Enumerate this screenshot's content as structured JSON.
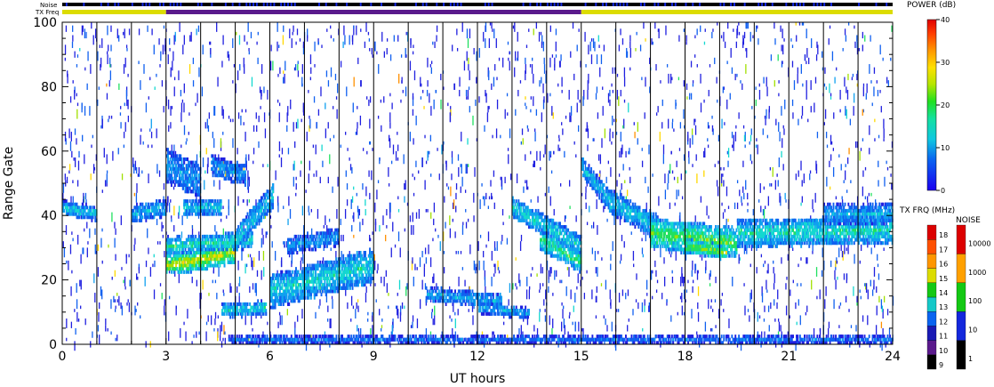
{
  "chart_data": {
    "type": "heatmap",
    "xlabel": "UT hours",
    "ylabel": "Range Gate",
    "xlim": [
      0,
      24
    ],
    "ylim": [
      0,
      100
    ],
    "x_ticks": [
      "0",
      "3",
      "6",
      "9",
      "12",
      "15",
      "18",
      "21",
      "24"
    ],
    "y_ticks": [
      "0",
      "20",
      "40",
      "60",
      "80",
      "100"
    ],
    "grid": "vertical lines each UT hour",
    "top_bars": {
      "noise_label": "Noise",
      "freq_label": "TX Freq",
      "tx_freq_segments": [
        {
          "start": 0,
          "end": 3,
          "freq_mhz": 15
        },
        {
          "start": 3,
          "end": 15,
          "freq_mhz": 10
        },
        {
          "start": 15,
          "end": 24,
          "freq_mhz": 15
        }
      ]
    },
    "power_colorbar": {
      "title": "POWER (dB)",
      "ticks": [
        "0",
        "10",
        "20",
        "30",
        "40"
      ],
      "range": [
        0,
        40
      ]
    },
    "txfreq_legend": {
      "title": "TX FRQ (MHz)",
      "levels": [
        "9",
        "10",
        "11",
        "12",
        "13",
        "14",
        "15",
        "16",
        "17",
        "18"
      ],
      "colors": [
        "#000000",
        "#5a1a8c",
        "#1a1ab4",
        "#0a64f0",
        "#14c8c8",
        "#14c814",
        "#dcdc00",
        "#ff9600",
        "#ff5000",
        "#dc0000"
      ]
    },
    "noise_legend": {
      "title": "NOISE",
      "levels": [
        "1",
        "10",
        "100",
        "1000",
        "10000"
      ],
      "colors": [
        "#000000",
        "#1428dc",
        "#14c814",
        "#ffa000",
        "#dc0000"
      ]
    },
    "power_palette": [
      "#2020e0",
      "#1060f0",
      "#10a0f0",
      "#14d8d0",
      "#20e060",
      "#a0e000",
      "#ffd800",
      "#ff9000",
      "#ff3000",
      "#d00000"
    ],
    "echo_bands": [
      {
        "t_start": 0.0,
        "t_end": 1.0,
        "gate_start": 42,
        "gate_end": 40,
        "width": 4,
        "power_db": 12
      },
      {
        "t_start": 2.0,
        "t_end": 3.0,
        "gate_start": 40,
        "gate_end": 42,
        "width": 5,
        "power_db": 10
      },
      {
        "t_start": 3.0,
        "t_end": 5.0,
        "gate_start": 24,
        "gate_end": 28,
        "width": 6,
        "power_db": 22
      },
      {
        "t_start": 3.0,
        "t_end": 5.5,
        "gate_start": 30,
        "gate_end": 32,
        "width": 5,
        "power_db": 14
      },
      {
        "t_start": 3.0,
        "t_end": 4.0,
        "gate_start": 55,
        "gate_end": 50,
        "width": 10,
        "power_db": 9
      },
      {
        "t_start": 3.5,
        "t_end": 4.6,
        "gate_start": 42,
        "gate_end": 42,
        "width": 5,
        "power_db": 11
      },
      {
        "t_start": 5.0,
        "t_end": 6.1,
        "gate_start": 32,
        "gate_end": 46,
        "width": 7,
        "power_db": 12
      },
      {
        "t_start": 4.3,
        "t_end": 5.3,
        "gate_start": 55,
        "gate_end": 52,
        "width": 6,
        "power_db": 9
      },
      {
        "t_start": 4.6,
        "t_end": 5.9,
        "gate_start": 10,
        "gate_end": 11,
        "width": 4,
        "power_db": 13
      },
      {
        "t_start": 6.0,
        "t_end": 9.0,
        "gate_start": 16,
        "gate_end": 24,
        "width": 10,
        "power_db": 13
      },
      {
        "t_start": 6.5,
        "t_end": 8.0,
        "gate_start": 30,
        "gate_end": 33,
        "width": 5,
        "power_db": 9
      },
      {
        "t_start": 10.5,
        "t_end": 12.7,
        "gate_start": 15,
        "gate_end": 13,
        "width": 4,
        "power_db": 10
      },
      {
        "t_start": 12.0,
        "t_end": 13.5,
        "gate_start": 11,
        "gate_end": 9,
        "width": 3,
        "power_db": 10
      },
      {
        "t_start": 13.0,
        "t_end": 15.0,
        "gate_start": 42,
        "gate_end": 30,
        "width": 6,
        "power_db": 13
      },
      {
        "t_start": 13.8,
        "t_end": 15.0,
        "gate_start": 32,
        "gate_end": 25,
        "width": 6,
        "power_db": 16
      },
      {
        "t_start": 15.0,
        "t_end": 15.8,
        "gate_start": 55,
        "gate_end": 44,
        "width": 6,
        "power_db": 11
      },
      {
        "t_start": 15.8,
        "t_end": 17.2,
        "gate_start": 44,
        "gate_end": 36,
        "width": 7,
        "power_db": 12
      },
      {
        "t_start": 17.0,
        "t_end": 19.5,
        "gate_start": 34,
        "gate_end": 31,
        "width": 9,
        "power_db": 18
      },
      {
        "t_start": 18.0,
        "t_end": 19.2,
        "gate_start": 30,
        "gate_end": 28,
        "width": 4,
        "power_db": 20
      },
      {
        "t_start": 19.5,
        "t_end": 24.0,
        "gate_start": 34,
        "gate_end": 35,
        "width": 8,
        "power_db": 14
      },
      {
        "t_start": 22.0,
        "t_end": 24.0,
        "gate_start": 40,
        "gate_end": 40,
        "width": 6,
        "power_db": 10
      },
      {
        "t_start": 4.8,
        "t_end": 24.0,
        "gate_start": 1,
        "gate_end": 1,
        "width": 2,
        "power_db": 6
      }
    ]
  }
}
